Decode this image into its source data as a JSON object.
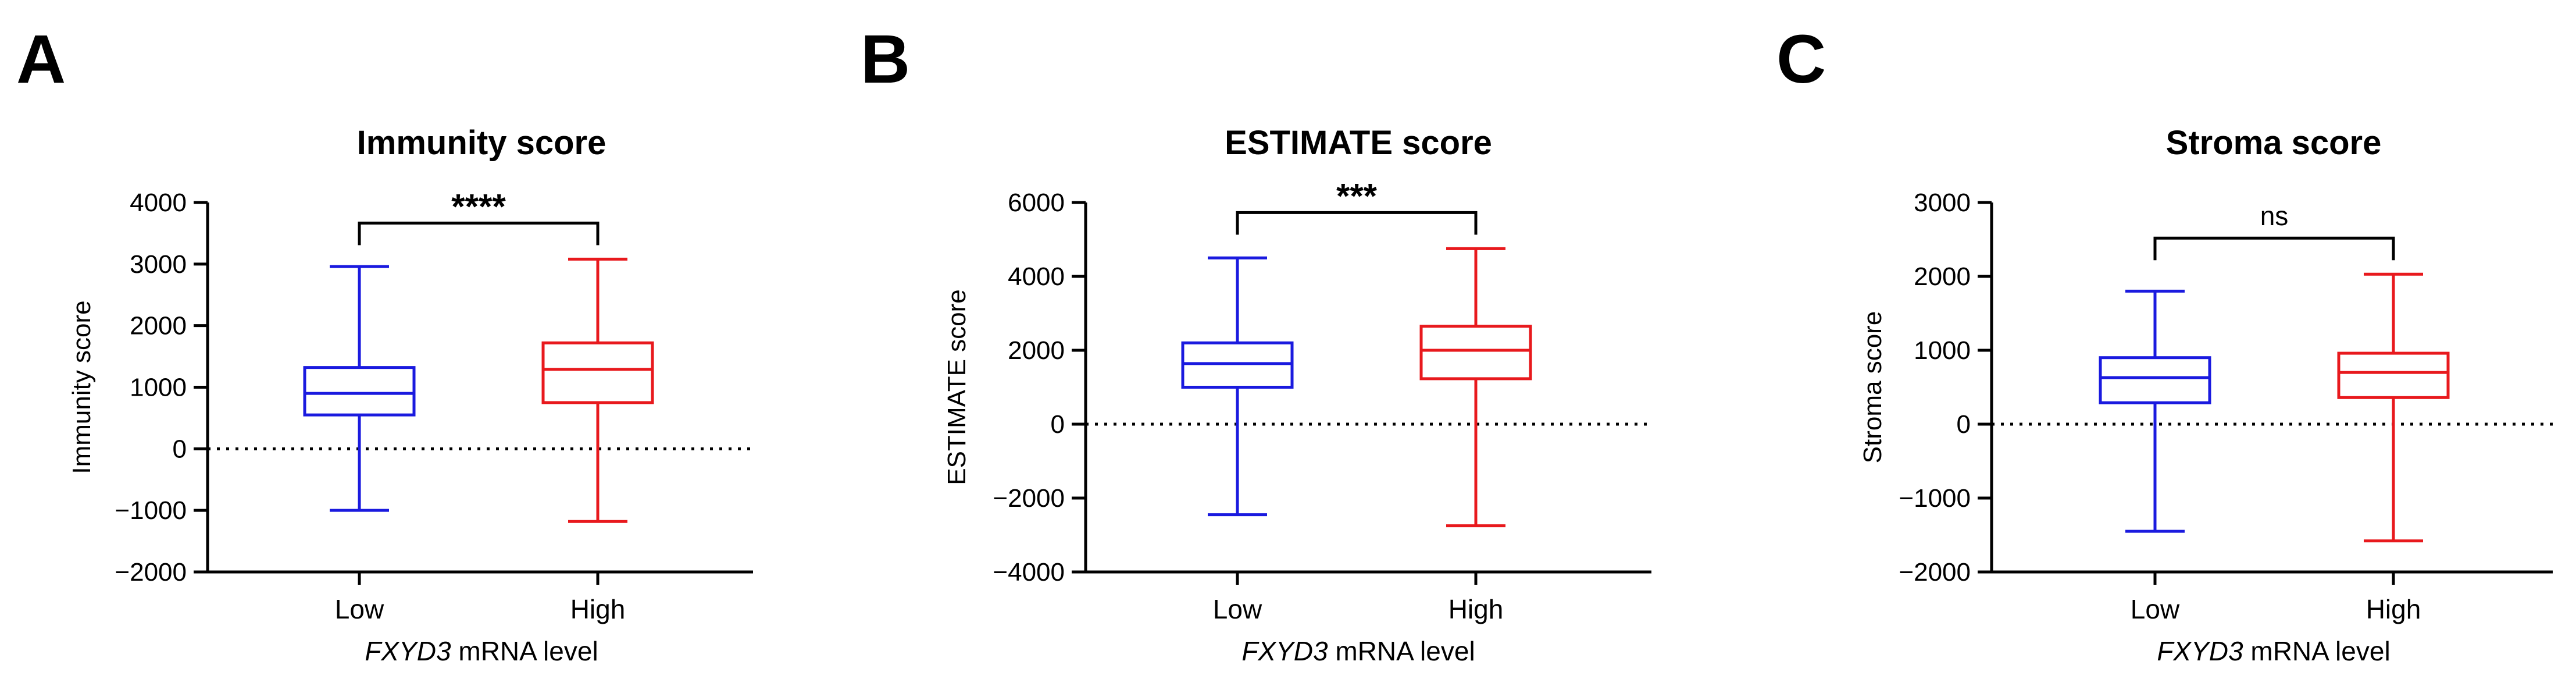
{
  "chart_data": [
    {
      "type": "box",
      "panel": "A",
      "title": "Immunity score",
      "ylabel": "Immunity score",
      "xlabel_italic": "FXYD3",
      "xlabel_rest": " mRNA level",
      "ylim": [
        -2000,
        4000
      ],
      "yticks": [
        -2000,
        -1000,
        0,
        1000,
        2000,
        3000,
        4000
      ],
      "ytick_labels": [
        "−2000",
        "−1000",
        "0",
        "1000",
        "2000",
        "3000",
        "4000"
      ],
      "reference_line": 0,
      "significance": "****",
      "categories": [
        "Low",
        "High"
      ],
      "series": [
        {
          "name": "Low",
          "color": "#1a1adf",
          "min": -1000,
          "q1": 550,
          "median": 900,
          "q3": 1320,
          "max": 2960
        },
        {
          "name": "High",
          "color": "#e8191d",
          "min": -1180,
          "q1": 750,
          "median": 1290,
          "q3": 1720,
          "max": 3080
        }
      ]
    },
    {
      "type": "box",
      "panel": "B",
      "title": "ESTIMATE score",
      "ylabel": "ESTIMATE score",
      "xlabel_italic": "FXYD3",
      "xlabel_rest": " mRNA level",
      "ylim": [
        -4000,
        6000
      ],
      "yticks": [
        -4000,
        -2000,
        0,
        2000,
        4000,
        6000
      ],
      "ytick_labels": [
        "−4000",
        "−2000",
        "0",
        "2000",
        "4000",
        "6000"
      ],
      "reference_line": 0,
      "significance": "***",
      "categories": [
        "Low",
        "High"
      ],
      "series": [
        {
          "name": "Low",
          "color": "#1a1adf",
          "min": -2450,
          "q1": 1000,
          "median": 1640,
          "q3": 2200,
          "max": 4500
        },
        {
          "name": "High",
          "color": "#e8191d",
          "min": -2750,
          "q1": 1230,
          "median": 2000,
          "q3": 2650,
          "max": 4750
        }
      ]
    },
    {
      "type": "box",
      "panel": "C",
      "title": "Stroma score",
      "ylabel": "Stroma score",
      "xlabel_italic": "FXYD3",
      "xlabel_rest": " mRNA level",
      "ylim": [
        -2000,
        3000
      ],
      "yticks": [
        -2000,
        -1000,
        0,
        1000,
        2000,
        3000
      ],
      "ytick_labels": [
        "−2000",
        "−1000",
        "0",
        "1000",
        "2000",
        "3000"
      ],
      "reference_line": 0,
      "significance": "ns",
      "categories": [
        "Low",
        "High"
      ],
      "series": [
        {
          "name": "Low",
          "color": "#1a1adf",
          "min": -1450,
          "q1": 290,
          "median": 630,
          "q3": 900,
          "max": 1800
        },
        {
          "name": "High",
          "color": "#e8191d",
          "min": -1580,
          "q1": 360,
          "median": 700,
          "q3": 960,
          "max": 2030
        }
      ]
    }
  ]
}
